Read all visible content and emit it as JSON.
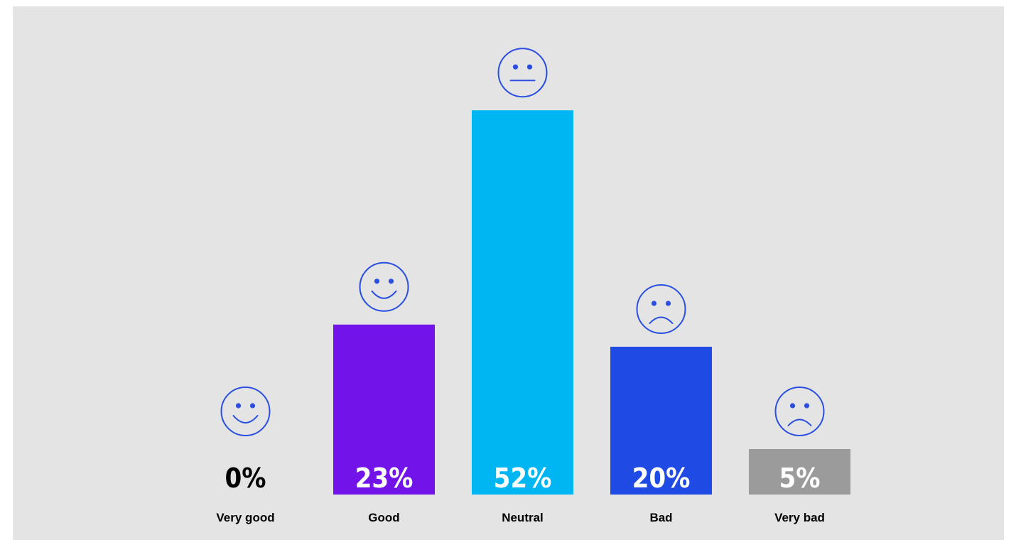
{
  "colors": {
    "background": "#e4e4e4",
    "icon_stroke": "#2a4fe0"
  },
  "chart_data": {
    "type": "bar",
    "categories": [
      "Very good",
      "Good",
      "Neutral",
      "Bad",
      "Very bad"
    ],
    "values": [
      0,
      23,
      52,
      20,
      5
    ],
    "value_labels": [
      "0%",
      "23%",
      "52%",
      "20%",
      "5%"
    ],
    "unit": "%",
    "bar_colors": [
      "#000000",
      "#7214e9",
      "#00b6f2",
      "#1f4be4",
      "#9b9b9b"
    ],
    "label_colors": [
      "#000000",
      "#ffffff",
      "#ffffff",
      "#ffffff",
      "#ffffff"
    ],
    "icons": [
      "happy-face-icon",
      "happy-face-icon",
      "neutral-face-icon",
      "sad-face-icon",
      "sad-face-icon"
    ],
    "title": "",
    "xlabel": "",
    "ylabel": "",
    "grid": false,
    "legend": "none"
  }
}
